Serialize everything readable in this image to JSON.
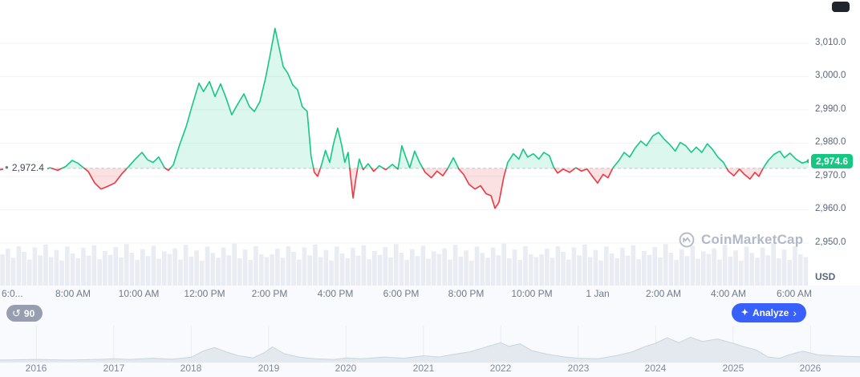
{
  "ui": {
    "baseline_label": "2,972.4",
    "price_badge_label": "2,974.6",
    "currency_label": "USD",
    "watermark_text": "CoinMarketCap",
    "history_count": "90",
    "analyze_label": "Analyze"
  },
  "icons": {
    "history": "↺",
    "sparkle": "✦",
    "chevron": "›",
    "baseline_dot": "●"
  },
  "colors": {
    "up": "#16c784",
    "down": "#ea3943",
    "up_fill": "rgba(22,199,132,0.15)",
    "down_fill": "rgba(234,57,67,0.15)",
    "accent_blue": "#3861fb",
    "volume_bar": "#e9edf3",
    "nav_fill": "#e4e9ef",
    "nav_stroke": "#ccd4dd"
  },
  "chart_data": {
    "type": "line",
    "title": "",
    "baseline": 2972.4,
    "current": 2974.6,
    "ylim": [
      2937.2,
      3023.0
    ],
    "xlim": [
      5.77,
      30.44
    ],
    "x_unit": "hour_of_day",
    "grid": true,
    "legend": false,
    "y_ticks": [
      {
        "label": "3,010.0",
        "value": 3010
      },
      {
        "label": "3,000.0",
        "value": 3000
      },
      {
        "label": "2,990.0",
        "value": 2990
      },
      {
        "label": "2,980.0",
        "value": 2980
      },
      {
        "label": "2,970.0",
        "value": 2970
      },
      {
        "label": "2,960.0",
        "value": 2960
      },
      {
        "label": "2,950.0",
        "value": 2950
      }
    ],
    "x_ticks": [
      {
        "label": "6:0...",
        "t": 6,
        "clip": true
      },
      {
        "label": "8:00 AM",
        "t": 8
      },
      {
        "label": "10:00 AM",
        "t": 10
      },
      {
        "label": "12:00 PM",
        "t": 12
      },
      {
        "label": "2:00 PM",
        "t": 14
      },
      {
        "label": "4:00 PM",
        "t": 16
      },
      {
        "label": "6:00 PM",
        "t": 18
      },
      {
        "label": "8:00 PM",
        "t": 20
      },
      {
        "label": "10:00 PM",
        "t": 22
      },
      {
        "label": "1 Jan",
        "t": 24
      },
      {
        "label": "2:00 AM",
        "t": 26
      },
      {
        "label": "4:00 AM",
        "t": 28
      },
      {
        "label": "6:00 AM",
        "t": 30
      }
    ],
    "series": [
      {
        "name": "price",
        "points": [
          [
            5.77,
            2972.0
          ],
          [
            6.26,
            2972.6
          ],
          [
            6.5,
            2971.6
          ],
          [
            6.8,
            2972.8
          ],
          [
            7.04,
            2971.5
          ],
          [
            7.29,
            2972.6
          ],
          [
            7.53,
            2971.8
          ],
          [
            7.78,
            2973.0
          ],
          [
            7.97,
            2974.8
          ],
          [
            8.14,
            2974.0
          ],
          [
            8.29,
            2972.8
          ],
          [
            8.46,
            2971.5
          ],
          [
            8.66,
            2968.0
          ],
          [
            8.85,
            2966.2
          ],
          [
            9.05,
            2967.0
          ],
          [
            9.27,
            2968.0
          ],
          [
            9.49,
            2970.8
          ],
          [
            9.68,
            2972.8
          ],
          [
            9.88,
            2975.0
          ],
          [
            10.1,
            2977.2
          ],
          [
            10.27,
            2975.0
          ],
          [
            10.44,
            2974.2
          ],
          [
            10.61,
            2975.8
          ],
          [
            10.79,
            2972.6
          ],
          [
            10.91,
            2971.8
          ],
          [
            11.06,
            2973.5
          ],
          [
            11.25,
            2979.5
          ],
          [
            11.45,
            2985.0
          ],
          [
            11.64,
            2991.5
          ],
          [
            11.84,
            2998.0
          ],
          [
            11.98,
            2995.5
          ],
          [
            12.16,
            2998.5
          ],
          [
            12.33,
            2994.0
          ],
          [
            12.5,
            2997.8
          ],
          [
            12.67,
            2993.5
          ],
          [
            12.84,
            2988.5
          ],
          [
            13.01,
            2991.5
          ],
          [
            13.21,
            2994.8
          ],
          [
            13.38,
            2991.0
          ],
          [
            13.53,
            2989.5
          ],
          [
            13.7,
            2992.5
          ],
          [
            13.87,
            2999.5
          ],
          [
            14.02,
            3007.0
          ],
          [
            14.16,
            3014.5
          ],
          [
            14.29,
            3008.5
          ],
          [
            14.41,
            3003.0
          ],
          [
            14.55,
            3001.0
          ],
          [
            14.7,
            2997.5
          ],
          [
            14.85,
            2996.0
          ],
          [
            14.99,
            2991.0
          ],
          [
            15.14,
            2989.5
          ],
          [
            15.26,
            2976.0
          ],
          [
            15.36,
            2971.2
          ],
          [
            15.46,
            2970.0
          ],
          [
            15.58,
            2973.5
          ],
          [
            15.7,
            2977.8
          ],
          [
            15.83,
            2974.2
          ],
          [
            15.95,
            2980.0
          ],
          [
            16.07,
            2984.5
          ],
          [
            16.19,
            2979.5
          ],
          [
            16.29,
            2974.2
          ],
          [
            16.39,
            2977.2
          ],
          [
            16.46,
            2970.5
          ],
          [
            16.54,
            2963.5
          ],
          [
            16.63,
            2969.5
          ],
          [
            16.73,
            2975.2
          ],
          [
            16.85,
            2972.0
          ],
          [
            17.0,
            2973.8
          ],
          [
            17.17,
            2971.5
          ],
          [
            17.34,
            2973.2
          ],
          [
            17.54,
            2972.0
          ],
          [
            17.74,
            2973.6
          ],
          [
            17.91,
            2972.2
          ],
          [
            18.03,
            2979.2
          ],
          [
            18.15,
            2975.8
          ],
          [
            18.27,
            2972.6
          ],
          [
            18.42,
            2977.6
          ],
          [
            18.57,
            2974.2
          ],
          [
            18.74,
            2971.2
          ],
          [
            18.93,
            2969.6
          ],
          [
            19.1,
            2971.6
          ],
          [
            19.28,
            2970.2
          ],
          [
            19.42,
            2972.2
          ],
          [
            19.6,
            2975.6
          ],
          [
            19.77,
            2972.2
          ],
          [
            19.91,
            2970.6
          ],
          [
            20.08,
            2967.6
          ],
          [
            20.26,
            2966.2
          ],
          [
            20.43,
            2967.2
          ],
          [
            20.6,
            2964.8
          ],
          [
            20.75,
            2964.2
          ],
          [
            20.87,
            2960.4
          ],
          [
            20.99,
            2962.2
          ],
          [
            21.14,
            2969.8
          ],
          [
            21.26,
            2974.2
          ],
          [
            21.43,
            2976.8
          ],
          [
            21.6,
            2975.2
          ],
          [
            21.73,
            2978.2
          ],
          [
            21.87,
            2975.8
          ],
          [
            22.04,
            2976.8
          ],
          [
            22.21,
            2975.2
          ],
          [
            22.36,
            2977.2
          ],
          [
            22.53,
            2976.2
          ],
          [
            22.66,
            2972.8
          ],
          [
            22.78,
            2971.0
          ],
          [
            22.95,
            2972.2
          ],
          [
            23.15,
            2971.2
          ],
          [
            23.34,
            2972.6
          ],
          [
            23.51,
            2971.6
          ],
          [
            23.68,
            2972.2
          ],
          [
            23.83,
            2970.2
          ],
          [
            24.0,
            2968.0
          ],
          [
            24.17,
            2970.6
          ],
          [
            24.32,
            2969.6
          ],
          [
            24.47,
            2972.6
          ],
          [
            24.64,
            2974.6
          ],
          [
            24.81,
            2977.2
          ],
          [
            24.98,
            2975.8
          ],
          [
            25.15,
            2978.6
          ],
          [
            25.32,
            2980.6
          ],
          [
            25.49,
            2979.2
          ],
          [
            25.69,
            2982.2
          ],
          [
            25.86,
            2983.2
          ],
          [
            26.03,
            2981.2
          ],
          [
            26.2,
            2979.6
          ],
          [
            26.37,
            2977.6
          ],
          [
            26.52,
            2980.2
          ],
          [
            26.69,
            2979.2
          ],
          [
            26.86,
            2977.2
          ],
          [
            27.01,
            2978.8
          ],
          [
            27.18,
            2977.2
          ],
          [
            27.35,
            2979.8
          ],
          [
            27.5,
            2978.2
          ],
          [
            27.67,
            2975.8
          ],
          [
            27.84,
            2974.2
          ],
          [
            27.99,
            2971.6
          ],
          [
            28.16,
            2970.2
          ],
          [
            28.33,
            2972.2
          ],
          [
            28.48,
            2970.6
          ],
          [
            28.65,
            2969.2
          ],
          [
            28.8,
            2971.2
          ],
          [
            28.92,
            2970.0
          ],
          [
            29.06,
            2972.6
          ],
          [
            29.21,
            2974.8
          ],
          [
            29.38,
            2976.6
          ],
          [
            29.56,
            2977.6
          ],
          [
            29.7,
            2975.6
          ],
          [
            29.87,
            2977.0
          ],
          [
            30.05,
            2975.2
          ],
          [
            30.24,
            2974.0
          ],
          [
            30.44,
            2974.6
          ]
        ]
      }
    ],
    "volume_profile": [
      0.72,
      0.85,
      0.64,
      0.91,
      0.78,
      0.6,
      0.88,
      0.7,
      0.95,
      0.66,
      0.82,
      0.58,
      0.9,
      0.74,
      0.63,
      0.87,
      0.69,
      0.93,
      0.61,
      0.8,
      0.71,
      0.89,
      0.65,
      0.96,
      0.76,
      0.59,
      0.84,
      0.68,
      0.92,
      0.62,
      0.79,
      0.73,
      0.86,
      0.6,
      0.94,
      0.67,
      0.81,
      0.57,
      0.9,
      0.75,
      0.64,
      0.88,
      0.7,
      0.97,
      0.63,
      0.83,
      0.59,
      0.91,
      0.72,
      0.66
    ],
    "navigator": {
      "xlim": [
        2015.53,
        2026.64
      ],
      "points": [
        [
          2015.53,
          0.03
        ],
        [
          2016.0,
          0.05
        ],
        [
          2016.4,
          0.03
        ],
        [
          2016.8,
          0.05
        ],
        [
          2017.0,
          0.07
        ],
        [
          2017.2,
          0.05
        ],
        [
          2017.5,
          0.09
        ],
        [
          2017.75,
          0.06
        ],
        [
          2018.0,
          0.12
        ],
        [
          2018.15,
          0.32
        ],
        [
          2018.3,
          0.44
        ],
        [
          2018.45,
          0.3
        ],
        [
          2018.6,
          0.18
        ],
        [
          2018.8,
          0.1
        ],
        [
          2018.95,
          0.28
        ],
        [
          2019.05,
          0.46
        ],
        [
          2019.2,
          0.24
        ],
        [
          2019.4,
          0.12
        ],
        [
          2019.6,
          0.07
        ],
        [
          2019.85,
          0.05
        ],
        [
          2020.0,
          0.1
        ],
        [
          2020.2,
          0.07
        ],
        [
          2020.5,
          0.13
        ],
        [
          2020.75,
          0.09
        ],
        [
          2021.0,
          0.17
        ],
        [
          2021.2,
          0.13
        ],
        [
          2021.4,
          0.22
        ],
        [
          2021.6,
          0.3
        ],
        [
          2021.8,
          0.45
        ],
        [
          2022.0,
          0.6
        ],
        [
          2022.1,
          0.48
        ],
        [
          2022.25,
          0.56
        ],
        [
          2022.4,
          0.34
        ],
        [
          2022.6,
          0.22
        ],
        [
          2022.8,
          0.14
        ],
        [
          2023.0,
          0.09
        ],
        [
          2023.25,
          0.07
        ],
        [
          2023.5,
          0.18
        ],
        [
          2023.7,
          0.3
        ],
        [
          2023.85,
          0.46
        ],
        [
          2024.0,
          0.58
        ],
        [
          2024.15,
          0.76
        ],
        [
          2024.3,
          0.6
        ],
        [
          2024.45,
          0.78
        ],
        [
          2024.6,
          0.64
        ],
        [
          2024.8,
          0.72
        ],
        [
          2025.0,
          0.58
        ],
        [
          2025.15,
          0.46
        ],
        [
          2025.3,
          0.36
        ],
        [
          2025.45,
          0.13
        ],
        [
          2025.6,
          0.09
        ],
        [
          2025.75,
          0.22
        ],
        [
          2025.9,
          0.32
        ],
        [
          2026.1,
          0.2
        ],
        [
          2026.35,
          0.16
        ],
        [
          2026.64,
          0.14
        ]
      ],
      "years": [
        {
          "label": "2016",
          "value": 2016
        },
        {
          "label": "2017",
          "value": 2017
        },
        {
          "label": "2018",
          "value": 2018
        },
        {
          "label": "2019",
          "value": 2019
        },
        {
          "label": "2020",
          "value": 2020
        },
        {
          "label": "2021",
          "value": 2021
        },
        {
          "label": "2022",
          "value": 2022
        },
        {
          "label": "2023",
          "value": 2023
        },
        {
          "label": "2024",
          "value": 2024
        },
        {
          "label": "2025",
          "value": 2025
        },
        {
          "label": "2026",
          "value": 2026
        }
      ]
    }
  }
}
